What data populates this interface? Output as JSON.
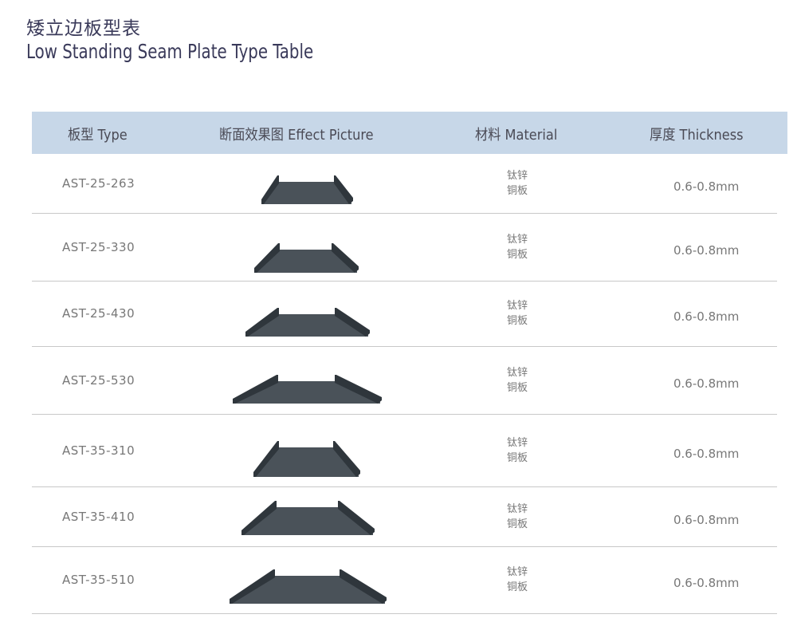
{
  "title": {
    "cn": "矮立边板型表",
    "en": "Low Standing Seam Plate Type Table"
  },
  "table": {
    "headers": {
      "type": "板型  Type",
      "picture": "断面效果图  Effect Picture",
      "material": "材料 Material",
      "thickness": "厚度 Thickness"
    },
    "profile_color": "#4a5259",
    "rows": [
      {
        "type": "AST-25-263",
        "material_line1": "钛锌",
        "material_line2": "铜板",
        "thickness": "0.6-0.8mm"
      },
      {
        "type": "AST-25-330",
        "material_line1": "钛锌",
        "material_line2": "铜板",
        "thickness": "0.6-0.8mm"
      },
      {
        "type": "AST-25-430",
        "material_line1": "钛锌",
        "material_line2": "铜板",
        "thickness": "0.6-0.8mm"
      },
      {
        "type": "AST-25-530",
        "material_line1": "钛锌",
        "material_line2": "铜板",
        "thickness": "0.6-0.8mm"
      },
      {
        "type": "AST-35-310",
        "material_line1": "钛锌",
        "material_line2": "铜板",
        "thickness": "0.6-0.8mm"
      },
      {
        "type": "AST-35-410",
        "material_line1": "钛锌",
        "material_line2": "铜板",
        "thickness": "0.6-0.8mm"
      },
      {
        "type": "AST-35-510",
        "material_line1": "钛锌",
        "material_line2": "铜板",
        "thickness": "0.6-0.8mm"
      }
    ]
  }
}
